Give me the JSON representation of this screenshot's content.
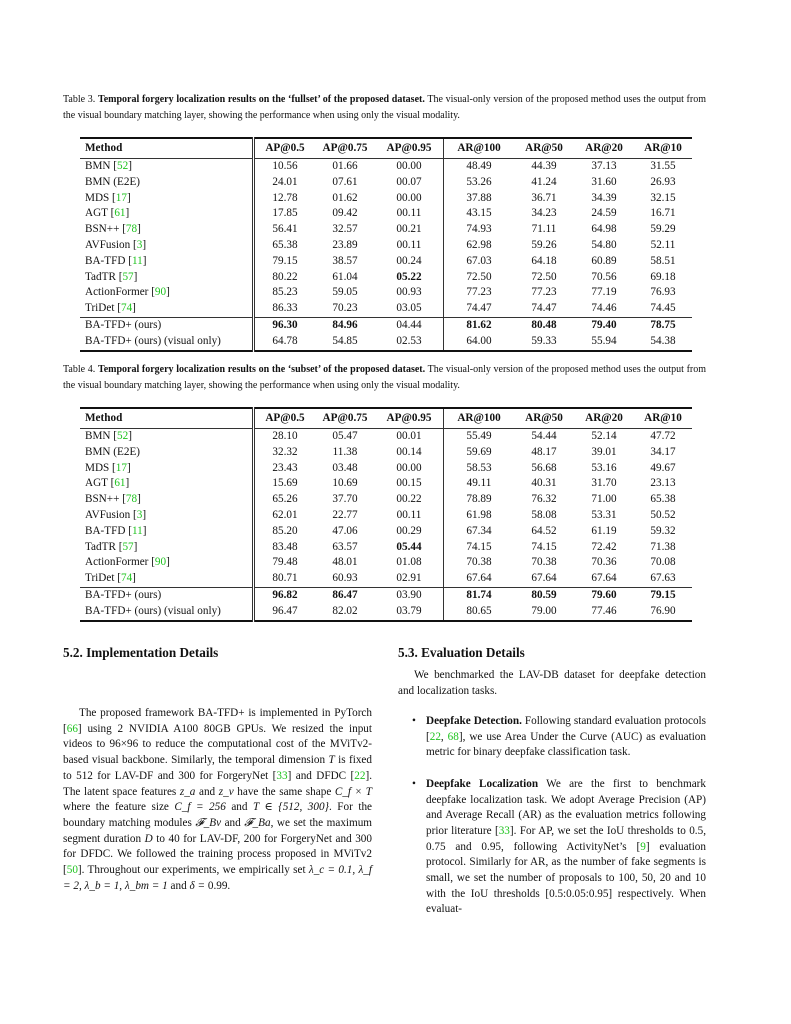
{
  "table_header": [
    "Method",
    "AP@0.5",
    "AP@0.75",
    "AP@0.95",
    "AR@100",
    "AR@50",
    "AR@20",
    "AR@10"
  ],
  "colors": {
    "ref": "#1ec31e",
    "text": "#111111"
  },
  "tables": [
    {
      "caption_label": "Table 3.",
      "caption_bold": "Temporal forgery localization results on the ‘fullset’ of the proposed dataset.",
      "caption_rest": " The visual-only version of the proposed method uses the output from the visual boundary matching layer, showing the performance when using only the visual modality.",
      "rows": [
        {
          "name": "BMN",
          "ref": "52",
          "values": [
            "10.56",
            "01.66",
            "00.00",
            "48.49",
            "44.39",
            "37.13",
            "31.55"
          ],
          "bold": []
        },
        {
          "name": "BMN (E2E)",
          "ref": "",
          "values": [
            "24.01",
            "07.61",
            "00.07",
            "53.26",
            "41.24",
            "31.60",
            "26.93"
          ],
          "bold": []
        },
        {
          "name": "MDS",
          "ref": "17",
          "values": [
            "12.78",
            "01.62",
            "00.00",
            "37.88",
            "36.71",
            "34.39",
            "32.15"
          ],
          "bold": []
        },
        {
          "name": "AGT",
          "ref": "61",
          "values": [
            "17.85",
            "09.42",
            "00.11",
            "43.15",
            "34.23",
            "24.59",
            "16.71"
          ],
          "bold": []
        },
        {
          "name": "BSN++",
          "ref": "78",
          "values": [
            "56.41",
            "32.57",
            "00.21",
            "74.93",
            "71.11",
            "64.98",
            "59.29"
          ],
          "bold": []
        },
        {
          "name": "AVFusion",
          "ref": "3",
          "values": [
            "65.38",
            "23.89",
            "00.11",
            "62.98",
            "59.26",
            "54.80",
            "52.11"
          ],
          "bold": []
        },
        {
          "name": "BA-TFD",
          "ref": "11",
          "values": [
            "79.15",
            "38.57",
            "00.24",
            "67.03",
            "64.18",
            "60.89",
            "58.51"
          ],
          "bold": []
        },
        {
          "name": "TadTR",
          "ref": "57",
          "values": [
            "80.22",
            "61.04",
            "05.22",
            "72.50",
            "72.50",
            "70.56",
            "69.18"
          ],
          "bold": [
            2
          ]
        },
        {
          "name": "ActionFormer",
          "ref": "90",
          "values": [
            "85.23",
            "59.05",
            "00.93",
            "77.23",
            "77.23",
            "77.19",
            "76.93"
          ],
          "bold": []
        },
        {
          "name": "TriDet",
          "ref": "74",
          "values": [
            "86.33",
            "70.23",
            "03.05",
            "74.47",
            "74.47",
            "74.46",
            "74.45"
          ],
          "bold": []
        }
      ],
      "ours": [
        {
          "name": "BA-TFD+ (ours)",
          "ref": "",
          "values": [
            "96.30",
            "84.96",
            "04.44",
            "81.62",
            "80.48",
            "79.40",
            "78.75"
          ],
          "bold": [
            0,
            1,
            3,
            4,
            5,
            6
          ]
        },
        {
          "name": "BA-TFD+ (ours) (visual only)",
          "ref": "",
          "values": [
            "64.78",
            "54.85",
            "02.53",
            "64.00",
            "59.33",
            "55.94",
            "54.38"
          ],
          "bold": []
        }
      ]
    },
    {
      "caption_label": "Table 4.",
      "caption_bold": "Temporal forgery localization results on the ‘subset’ of the proposed dataset.",
      "caption_rest": " The visual-only version of the proposed method uses the output from the visual boundary matching layer, showing the performance when using only the visual modality.",
      "rows": [
        {
          "name": "BMN",
          "ref": "52",
          "values": [
            "28.10",
            "05.47",
            "00.01",
            "55.49",
            "54.44",
            "52.14",
            "47.72"
          ],
          "bold": []
        },
        {
          "name": "BMN (E2E)",
          "ref": "",
          "values": [
            "32.32",
            "11.38",
            "00.14",
            "59.69",
            "48.17",
            "39.01",
            "34.17"
          ],
          "bold": []
        },
        {
          "name": "MDS",
          "ref": "17",
          "values": [
            "23.43",
            "03.48",
            "00.00",
            "58.53",
            "56.68",
            "53.16",
            "49.67"
          ],
          "bold": []
        },
        {
          "name": "AGT",
          "ref": "61",
          "values": [
            "15.69",
            "10.69",
            "00.15",
            "49.11",
            "40.31",
            "31.70",
            "23.13"
          ],
          "bold": []
        },
        {
          "name": "BSN++",
          "ref": "78",
          "values": [
            "65.26",
            "37.70",
            "00.22",
            "78.89",
            "76.32",
            "71.00",
            "65.38"
          ],
          "bold": []
        },
        {
          "name": "AVFusion",
          "ref": "3",
          "values": [
            "62.01",
            "22.77",
            "00.11",
            "61.98",
            "58.08",
            "53.31",
            "50.52"
          ],
          "bold": []
        },
        {
          "name": "BA-TFD",
          "ref": "11",
          "values": [
            "85.20",
            "47.06",
            "00.29",
            "67.34",
            "64.52",
            "61.19",
            "59.32"
          ],
          "bold": []
        },
        {
          "name": "TadTR",
          "ref": "57",
          "values": [
            "83.48",
            "63.57",
            "05.44",
            "74.15",
            "74.15",
            "72.42",
            "71.38"
          ],
          "bold": [
            2
          ]
        },
        {
          "name": "ActionFormer",
          "ref": "90",
          "values": [
            "79.48",
            "48.01",
            "01.08",
            "70.38",
            "70.38",
            "70.36",
            "70.08"
          ],
          "bold": []
        },
        {
          "name": "TriDet",
          "ref": "74",
          "values": [
            "80.71",
            "60.93",
            "02.91",
            "67.64",
            "67.64",
            "67.64",
            "67.63"
          ],
          "bold": []
        }
      ],
      "ours": [
        {
          "name": "BA-TFD+ (ours)",
          "ref": "",
          "values": [
            "96.82",
            "86.47",
            "03.90",
            "81.74",
            "80.59",
            "79.60",
            "79.15"
          ],
          "bold": [
            0,
            1,
            3,
            4,
            5,
            6
          ]
        },
        {
          "name": "BA-TFD+ (ours) (visual only)",
          "ref": "",
          "values": [
            "96.47",
            "82.02",
            "03.79",
            "80.65",
            "79.00",
            "77.46",
            "76.90"
          ],
          "bold": []
        }
      ]
    }
  ],
  "sections": {
    "impl_title": "5.2. Implementation Details",
    "impl_para": [
      {
        "t": "The proposed framework BA-TFD+ is implemented in PyTorch ["
      },
      {
        "r": "66"
      },
      {
        "t": "] using 2 NVIDIA A100 80GB GPUs. We resized the input videos to 96×96 to reduce the computational cost of the MViTv2-based visual backbone. Similarly, the temporal dimension "
      },
      {
        "m": "T"
      },
      {
        "t": " is fixed to 512 for LAV-DF and 300 for ForgeryNet ["
      },
      {
        "r": "33"
      },
      {
        "t": "] and DFDC ["
      },
      {
        "r": "22"
      },
      {
        "t": "]. The latent space features "
      },
      {
        "m": "z_a"
      },
      {
        "t": " and "
      },
      {
        "m": "z_v"
      },
      {
        "t": " have the same shape "
      },
      {
        "m": "C_f × T"
      },
      {
        "t": " where the feature size "
      },
      {
        "m": "C_f = 256"
      },
      {
        "t": " and "
      },
      {
        "m": "T ∈ {512, 300}"
      },
      {
        "t": ". For the boundary matching modules "
      },
      {
        "m": "𝓕_Bv"
      },
      {
        "t": " and "
      },
      {
        "m": "𝓕_Ba"
      },
      {
        "t": ", we set the maximum segment duration "
      },
      {
        "m": "D"
      },
      {
        "t": " to 40 for LAV-DF, 200 for ForgeryNet and 300 for DFDC. We followed the training process proposed in MViTv2 ["
      },
      {
        "r": "50"
      },
      {
        "t": "]. Throughout our experiments, we empirically set "
      },
      {
        "m": "λ_c = 0.1, λ_f = 2, λ_b = 1, λ_bm = 1"
      },
      {
        "t": " and "
      },
      {
        "m": "δ ="
      },
      {
        "t": " 0.99."
      }
    ],
    "eval_title": "5.3. Evaluation Details",
    "eval_para": "We benchmarked the LAV-DB dataset for deepfake detection and localization tasks.",
    "bullets": [
      {
        "bold": "Deepfake Detection.",
        "segs": [
          {
            "t": " Following standard evaluation protocols ["
          },
          {
            "r": "22"
          },
          {
            "t": ", "
          },
          {
            "r": "68"
          },
          {
            "t": "], we use Area Under the Curve (AUC) as evaluation metric for binary deepfake classification task."
          }
        ]
      },
      {
        "bold": "Deepfake Localization",
        "segs": [
          {
            "t": " We are the first to benchmark deepfake localization task. We adopt Average Precision (AP) and Average Recall (AR) as the evaluation metrics following prior literature ["
          },
          {
            "r": "33"
          },
          {
            "t": "]. For AP, we set the IoU thresholds to 0.5, 0.75 and 0.95, following ActivityNet’s ["
          },
          {
            "r": "9"
          },
          {
            "t": "] evaluation protocol. Similarly for AR, as the number of fake segments is small, we set the number of proposals to 100, 50, 20 and 10 with the IoU thresholds [0.5:0.05:0.95] respectively. When evaluat-"
          }
        ]
      }
    ]
  }
}
